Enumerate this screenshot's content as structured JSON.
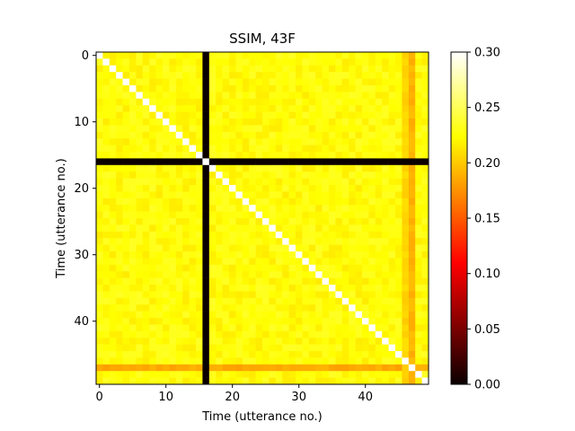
{
  "chart_data": {
    "type": "heatmap",
    "title": "SSIM, 43F",
    "xlabel": "Time (utterance no.)",
    "ylabel": "Time (utterance no.)",
    "size": 50,
    "colormap": "hot",
    "color_range": [
      0.0,
      0.3
    ],
    "x_ticks": [
      0,
      10,
      20,
      30,
      40
    ],
    "y_ticks": [
      0,
      10,
      20,
      30,
      40
    ],
    "colorbar_ticks": [
      "0.00",
      "0.05",
      "0.10",
      "0.15",
      "0.20",
      "0.25",
      "0.30"
    ],
    "diagonal_value": 0.3,
    "baseline_value": 0.225,
    "zero_rows": [
      16
    ],
    "zero_cols": [
      16
    ],
    "low_rows": [
      {
        "index": 47,
        "value": 0.185
      }
    ],
    "low_cols": [
      {
        "index": 47,
        "value": 0.19
      },
      {
        "index": 46,
        "value": 0.205
      }
    ]
  }
}
